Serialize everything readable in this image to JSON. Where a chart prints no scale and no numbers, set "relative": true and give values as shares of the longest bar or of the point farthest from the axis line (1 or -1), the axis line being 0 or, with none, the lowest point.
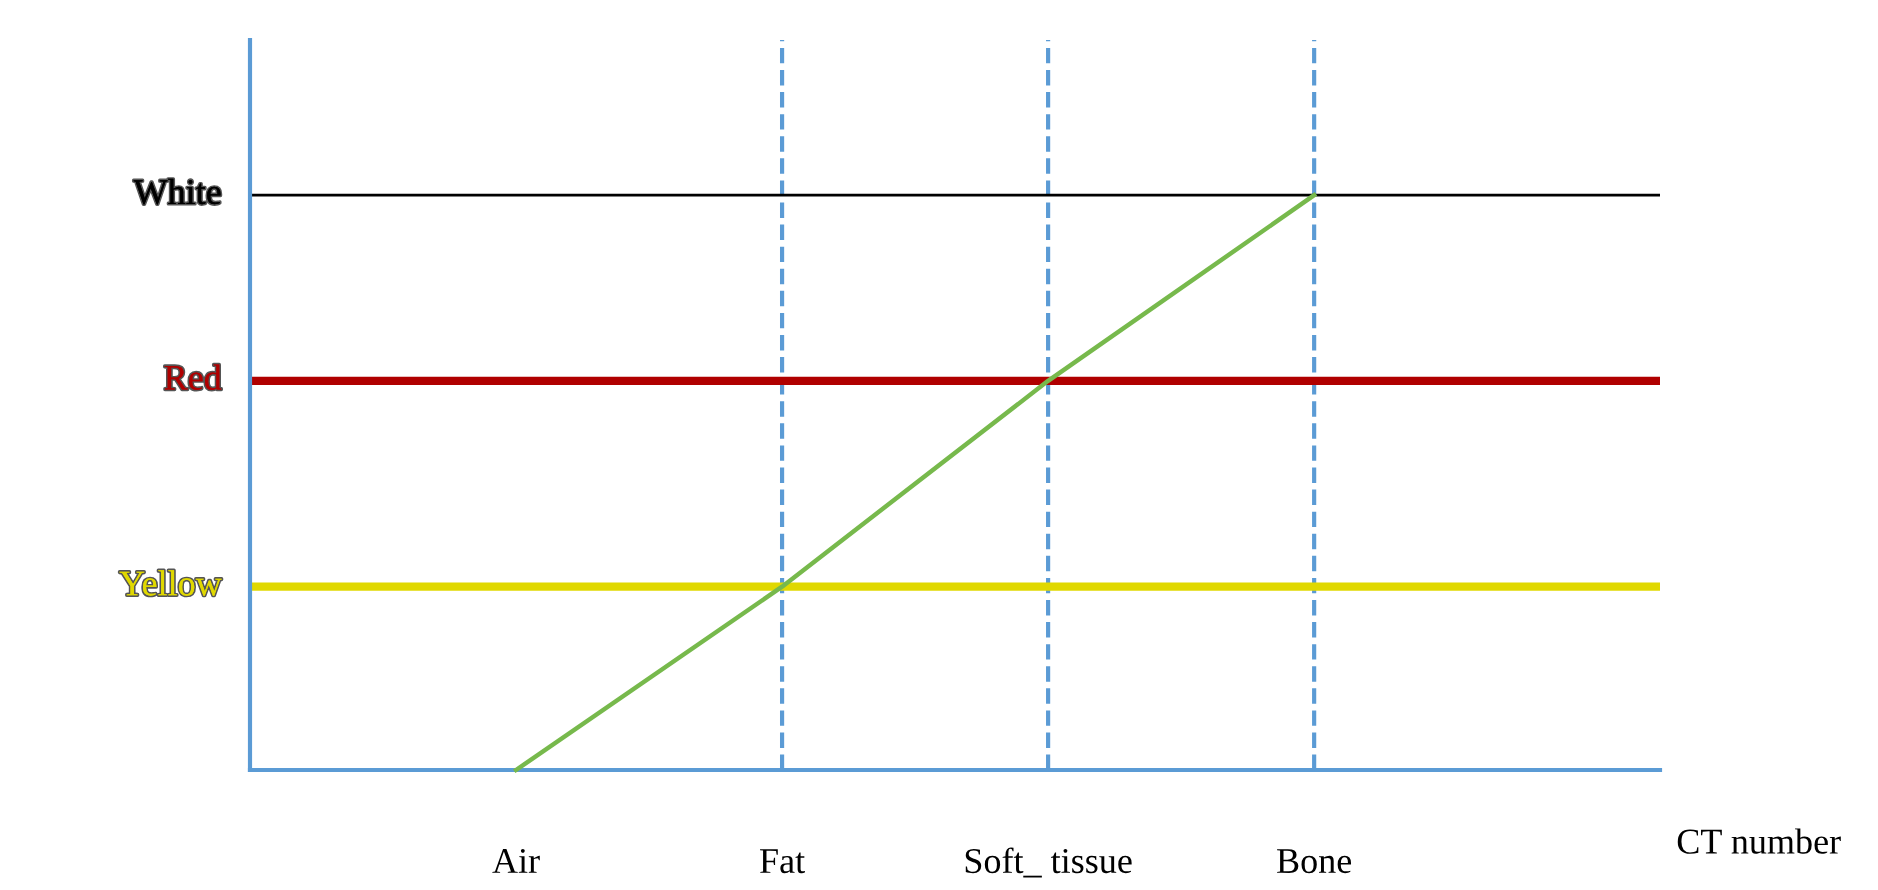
{
  "chart_data": {
    "type": "line",
    "relative": true,
    "xlabel": "CT number",
    "categories": [
      "Air",
      "Fat",
      "Soft_ tissue",
      "Bone"
    ],
    "series": [
      {
        "color": "#77b94c",
        "values": [
          0,
          0.319,
          0.677,
          1
        ]
      }
    ],
    "ref_lines": [
      {
        "axis": "y",
        "value": 1,
        "label": "White",
        "color": "#000000",
        "line_style": "solid"
      },
      {
        "axis": "y",
        "value": 0.677,
        "label": "Red",
        "color": "#b00000",
        "line_style": "solid"
      },
      {
        "axis": "y",
        "value": 0.319,
        "label": "Yellow",
        "color": "#e0d800",
        "line_style": "solid"
      },
      {
        "axis": "x",
        "value": "Fat",
        "color": "#5b9bd5",
        "line_style": "dashed"
      },
      {
        "axis": "x",
        "value": "Soft_ tissue",
        "color": "#5b9bd5",
        "line_style": "dashed"
      },
      {
        "axis": "x",
        "value": "Bone",
        "color": "#5b9bd5",
        "line_style": "dashed"
      }
    ],
    "grid": false,
    "legend": false,
    "marker": "none",
    "line_style": "solid"
  }
}
